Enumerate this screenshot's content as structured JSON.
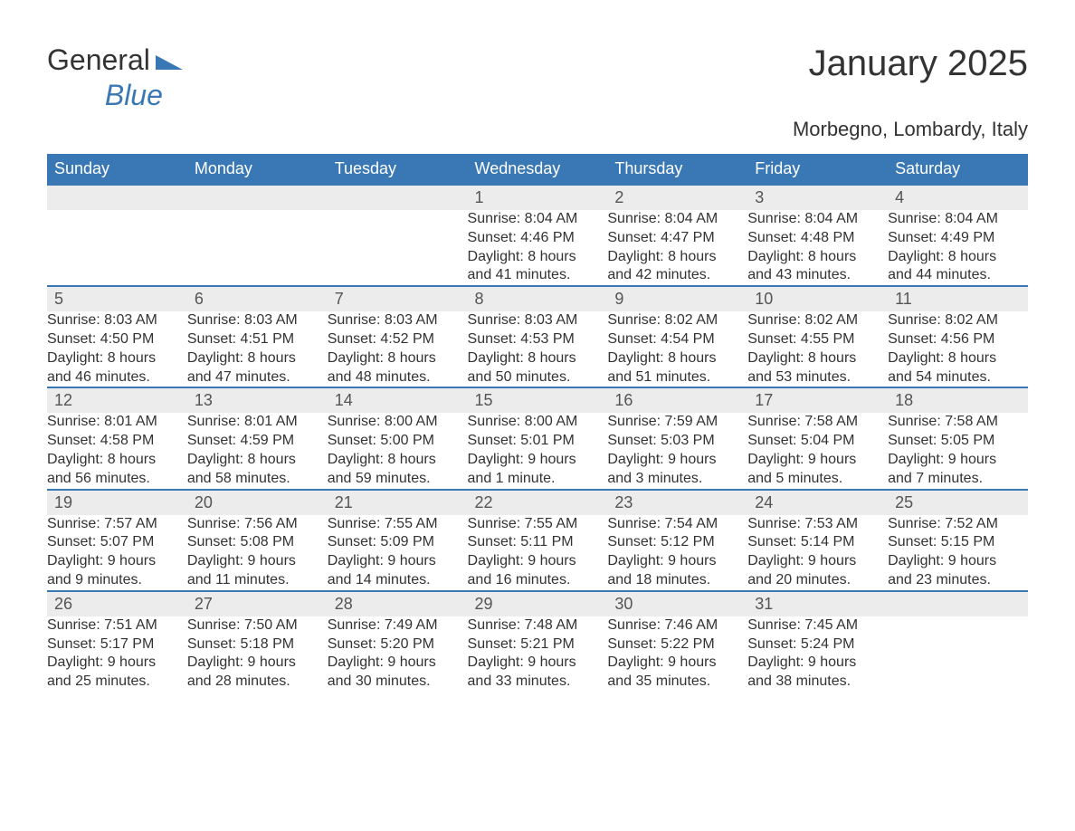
{
  "brand": {
    "part1": "General",
    "part2": "Blue"
  },
  "title": "January 2025",
  "location": "Morbegno, Lombardy, Italy",
  "colors": {
    "header_bg": "#3a78b5",
    "header_fg": "#ffffff",
    "stripe_bg": "#ececec",
    "rule": "#3a78b5",
    "text": "#333333"
  },
  "weekdays": [
    "Sunday",
    "Monday",
    "Tuesday",
    "Wednesday",
    "Thursday",
    "Friday",
    "Saturday"
  ],
  "weeks": [
    {
      "nums": [
        "",
        "",
        "",
        "1",
        "2",
        "3",
        "4"
      ],
      "cells": [
        {
          "sunrise": "",
          "sunset": "",
          "daylight1": "",
          "daylight2": ""
        },
        {
          "sunrise": "",
          "sunset": "",
          "daylight1": "",
          "daylight2": ""
        },
        {
          "sunrise": "",
          "sunset": "",
          "daylight1": "",
          "daylight2": ""
        },
        {
          "sunrise": "Sunrise: 8:04 AM",
          "sunset": "Sunset: 4:46 PM",
          "daylight1": "Daylight: 8 hours",
          "daylight2": "and 41 minutes."
        },
        {
          "sunrise": "Sunrise: 8:04 AM",
          "sunset": "Sunset: 4:47 PM",
          "daylight1": "Daylight: 8 hours",
          "daylight2": "and 42 minutes."
        },
        {
          "sunrise": "Sunrise: 8:04 AM",
          "sunset": "Sunset: 4:48 PM",
          "daylight1": "Daylight: 8 hours",
          "daylight2": "and 43 minutes."
        },
        {
          "sunrise": "Sunrise: 8:04 AM",
          "sunset": "Sunset: 4:49 PM",
          "daylight1": "Daylight: 8 hours",
          "daylight2": "and 44 minutes."
        }
      ]
    },
    {
      "nums": [
        "5",
        "6",
        "7",
        "8",
        "9",
        "10",
        "11"
      ],
      "cells": [
        {
          "sunrise": "Sunrise: 8:03 AM",
          "sunset": "Sunset: 4:50 PM",
          "daylight1": "Daylight: 8 hours",
          "daylight2": "and 46 minutes."
        },
        {
          "sunrise": "Sunrise: 8:03 AM",
          "sunset": "Sunset: 4:51 PM",
          "daylight1": "Daylight: 8 hours",
          "daylight2": "and 47 minutes."
        },
        {
          "sunrise": "Sunrise: 8:03 AM",
          "sunset": "Sunset: 4:52 PM",
          "daylight1": "Daylight: 8 hours",
          "daylight2": "and 48 minutes."
        },
        {
          "sunrise": "Sunrise: 8:03 AM",
          "sunset": "Sunset: 4:53 PM",
          "daylight1": "Daylight: 8 hours",
          "daylight2": "and 50 minutes."
        },
        {
          "sunrise": "Sunrise: 8:02 AM",
          "sunset": "Sunset: 4:54 PM",
          "daylight1": "Daylight: 8 hours",
          "daylight2": "and 51 minutes."
        },
        {
          "sunrise": "Sunrise: 8:02 AM",
          "sunset": "Sunset: 4:55 PM",
          "daylight1": "Daylight: 8 hours",
          "daylight2": "and 53 minutes."
        },
        {
          "sunrise": "Sunrise: 8:02 AM",
          "sunset": "Sunset: 4:56 PM",
          "daylight1": "Daylight: 8 hours",
          "daylight2": "and 54 minutes."
        }
      ]
    },
    {
      "nums": [
        "12",
        "13",
        "14",
        "15",
        "16",
        "17",
        "18"
      ],
      "cells": [
        {
          "sunrise": "Sunrise: 8:01 AM",
          "sunset": "Sunset: 4:58 PM",
          "daylight1": "Daylight: 8 hours",
          "daylight2": "and 56 minutes."
        },
        {
          "sunrise": "Sunrise: 8:01 AM",
          "sunset": "Sunset: 4:59 PM",
          "daylight1": "Daylight: 8 hours",
          "daylight2": "and 58 minutes."
        },
        {
          "sunrise": "Sunrise: 8:00 AM",
          "sunset": "Sunset: 5:00 PM",
          "daylight1": "Daylight: 8 hours",
          "daylight2": "and 59 minutes."
        },
        {
          "sunrise": "Sunrise: 8:00 AM",
          "sunset": "Sunset: 5:01 PM",
          "daylight1": "Daylight: 9 hours",
          "daylight2": "and 1 minute."
        },
        {
          "sunrise": "Sunrise: 7:59 AM",
          "sunset": "Sunset: 5:03 PM",
          "daylight1": "Daylight: 9 hours",
          "daylight2": "and 3 minutes."
        },
        {
          "sunrise": "Sunrise: 7:58 AM",
          "sunset": "Sunset: 5:04 PM",
          "daylight1": "Daylight: 9 hours",
          "daylight2": "and 5 minutes."
        },
        {
          "sunrise": "Sunrise: 7:58 AM",
          "sunset": "Sunset: 5:05 PM",
          "daylight1": "Daylight: 9 hours",
          "daylight2": "and 7 minutes."
        }
      ]
    },
    {
      "nums": [
        "19",
        "20",
        "21",
        "22",
        "23",
        "24",
        "25"
      ],
      "cells": [
        {
          "sunrise": "Sunrise: 7:57 AM",
          "sunset": "Sunset: 5:07 PM",
          "daylight1": "Daylight: 9 hours",
          "daylight2": "and 9 minutes."
        },
        {
          "sunrise": "Sunrise: 7:56 AM",
          "sunset": "Sunset: 5:08 PM",
          "daylight1": "Daylight: 9 hours",
          "daylight2": "and 11 minutes."
        },
        {
          "sunrise": "Sunrise: 7:55 AM",
          "sunset": "Sunset: 5:09 PM",
          "daylight1": "Daylight: 9 hours",
          "daylight2": "and 14 minutes."
        },
        {
          "sunrise": "Sunrise: 7:55 AM",
          "sunset": "Sunset: 5:11 PM",
          "daylight1": "Daylight: 9 hours",
          "daylight2": "and 16 minutes."
        },
        {
          "sunrise": "Sunrise: 7:54 AM",
          "sunset": "Sunset: 5:12 PM",
          "daylight1": "Daylight: 9 hours",
          "daylight2": "and 18 minutes."
        },
        {
          "sunrise": "Sunrise: 7:53 AM",
          "sunset": "Sunset: 5:14 PM",
          "daylight1": "Daylight: 9 hours",
          "daylight2": "and 20 minutes."
        },
        {
          "sunrise": "Sunrise: 7:52 AM",
          "sunset": "Sunset: 5:15 PM",
          "daylight1": "Daylight: 9 hours",
          "daylight2": "and 23 minutes."
        }
      ]
    },
    {
      "nums": [
        "26",
        "27",
        "28",
        "29",
        "30",
        "31",
        ""
      ],
      "cells": [
        {
          "sunrise": "Sunrise: 7:51 AM",
          "sunset": "Sunset: 5:17 PM",
          "daylight1": "Daylight: 9 hours",
          "daylight2": "and 25 minutes."
        },
        {
          "sunrise": "Sunrise: 7:50 AM",
          "sunset": "Sunset: 5:18 PM",
          "daylight1": "Daylight: 9 hours",
          "daylight2": "and 28 minutes."
        },
        {
          "sunrise": "Sunrise: 7:49 AM",
          "sunset": "Sunset: 5:20 PM",
          "daylight1": "Daylight: 9 hours",
          "daylight2": "and 30 minutes."
        },
        {
          "sunrise": "Sunrise: 7:48 AM",
          "sunset": "Sunset: 5:21 PM",
          "daylight1": "Daylight: 9 hours",
          "daylight2": "and 33 minutes."
        },
        {
          "sunrise": "Sunrise: 7:46 AM",
          "sunset": "Sunset: 5:22 PM",
          "daylight1": "Daylight: 9 hours",
          "daylight2": "and 35 minutes."
        },
        {
          "sunrise": "Sunrise: 7:45 AM",
          "sunset": "Sunset: 5:24 PM",
          "daylight1": "Daylight: 9 hours",
          "daylight2": "and 38 minutes."
        },
        {
          "sunrise": "",
          "sunset": "",
          "daylight1": "",
          "daylight2": ""
        }
      ]
    }
  ]
}
